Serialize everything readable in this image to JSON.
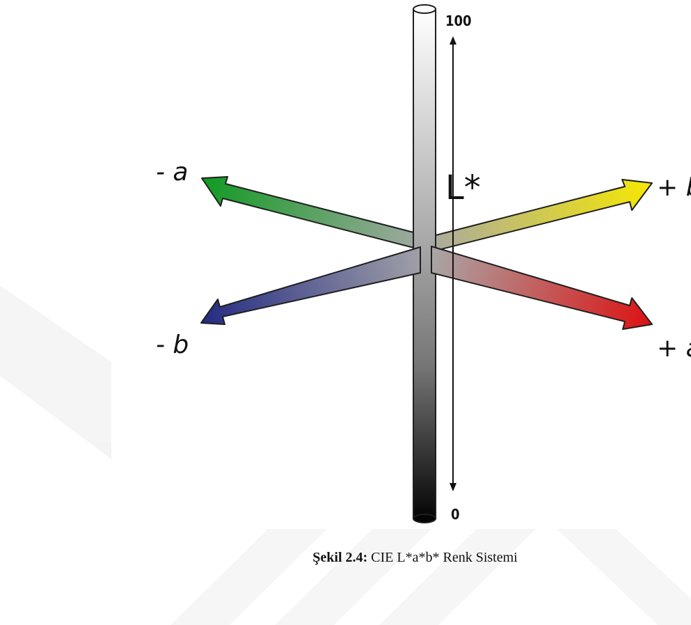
{
  "figure": {
    "axes": {
      "lightness": {
        "label": "L*",
        "max_label": "100",
        "min_label": "0"
      },
      "neg_a": "- a",
      "pos_a": "+ a",
      "neg_b": "- b",
      "pos_b": "+ b"
    },
    "caption": {
      "prefix": "Şekil 2.4:",
      "text": "CIE L*a*b* Renk Sistemi"
    },
    "colors": {
      "neg_a": "#119a22",
      "pos_a": "#dd1111",
      "neg_b": "#232a82",
      "pos_b": "#f6e800",
      "lightness_top": "#ffffff",
      "lightness_bottom": "#050505",
      "watermark": "#f3f3f3"
    }
  }
}
